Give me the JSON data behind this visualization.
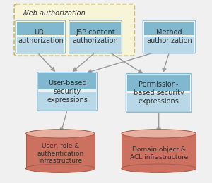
{
  "fig_w": 3.0,
  "fig_h": 2.6,
  "dpi": 100,
  "bg_color": "#f0f0f0",
  "box_blue_face": "#b8d8e8",
  "box_blue_top": "#80b8d0",
  "box_blue_edge": "#90b8cc",
  "web_auth_face": "#f8f4d8",
  "web_auth_edge": "#c8b870",
  "db_face_bottom": "#cc7060",
  "db_face_top": "#e8b0a0",
  "db_edge": "#aa6050",
  "arrow_color": "#999999",
  "text_color": "#333333",
  "web_label": "Web authorization",
  "url_label": "URL\nauthorization",
  "jsp_label": "JSP content\nauthorization",
  "method_label": "Method\nauthorization",
  "user_expr_label": "User-based\nsecurity\nexpressions",
  "perm_expr_label": "Permission-\nbased security\nexpressions",
  "user_db_label": "User, role &\nauthentication\nInfrastructure",
  "domain_db_label": "Domain object &\nACL infrastructure"
}
